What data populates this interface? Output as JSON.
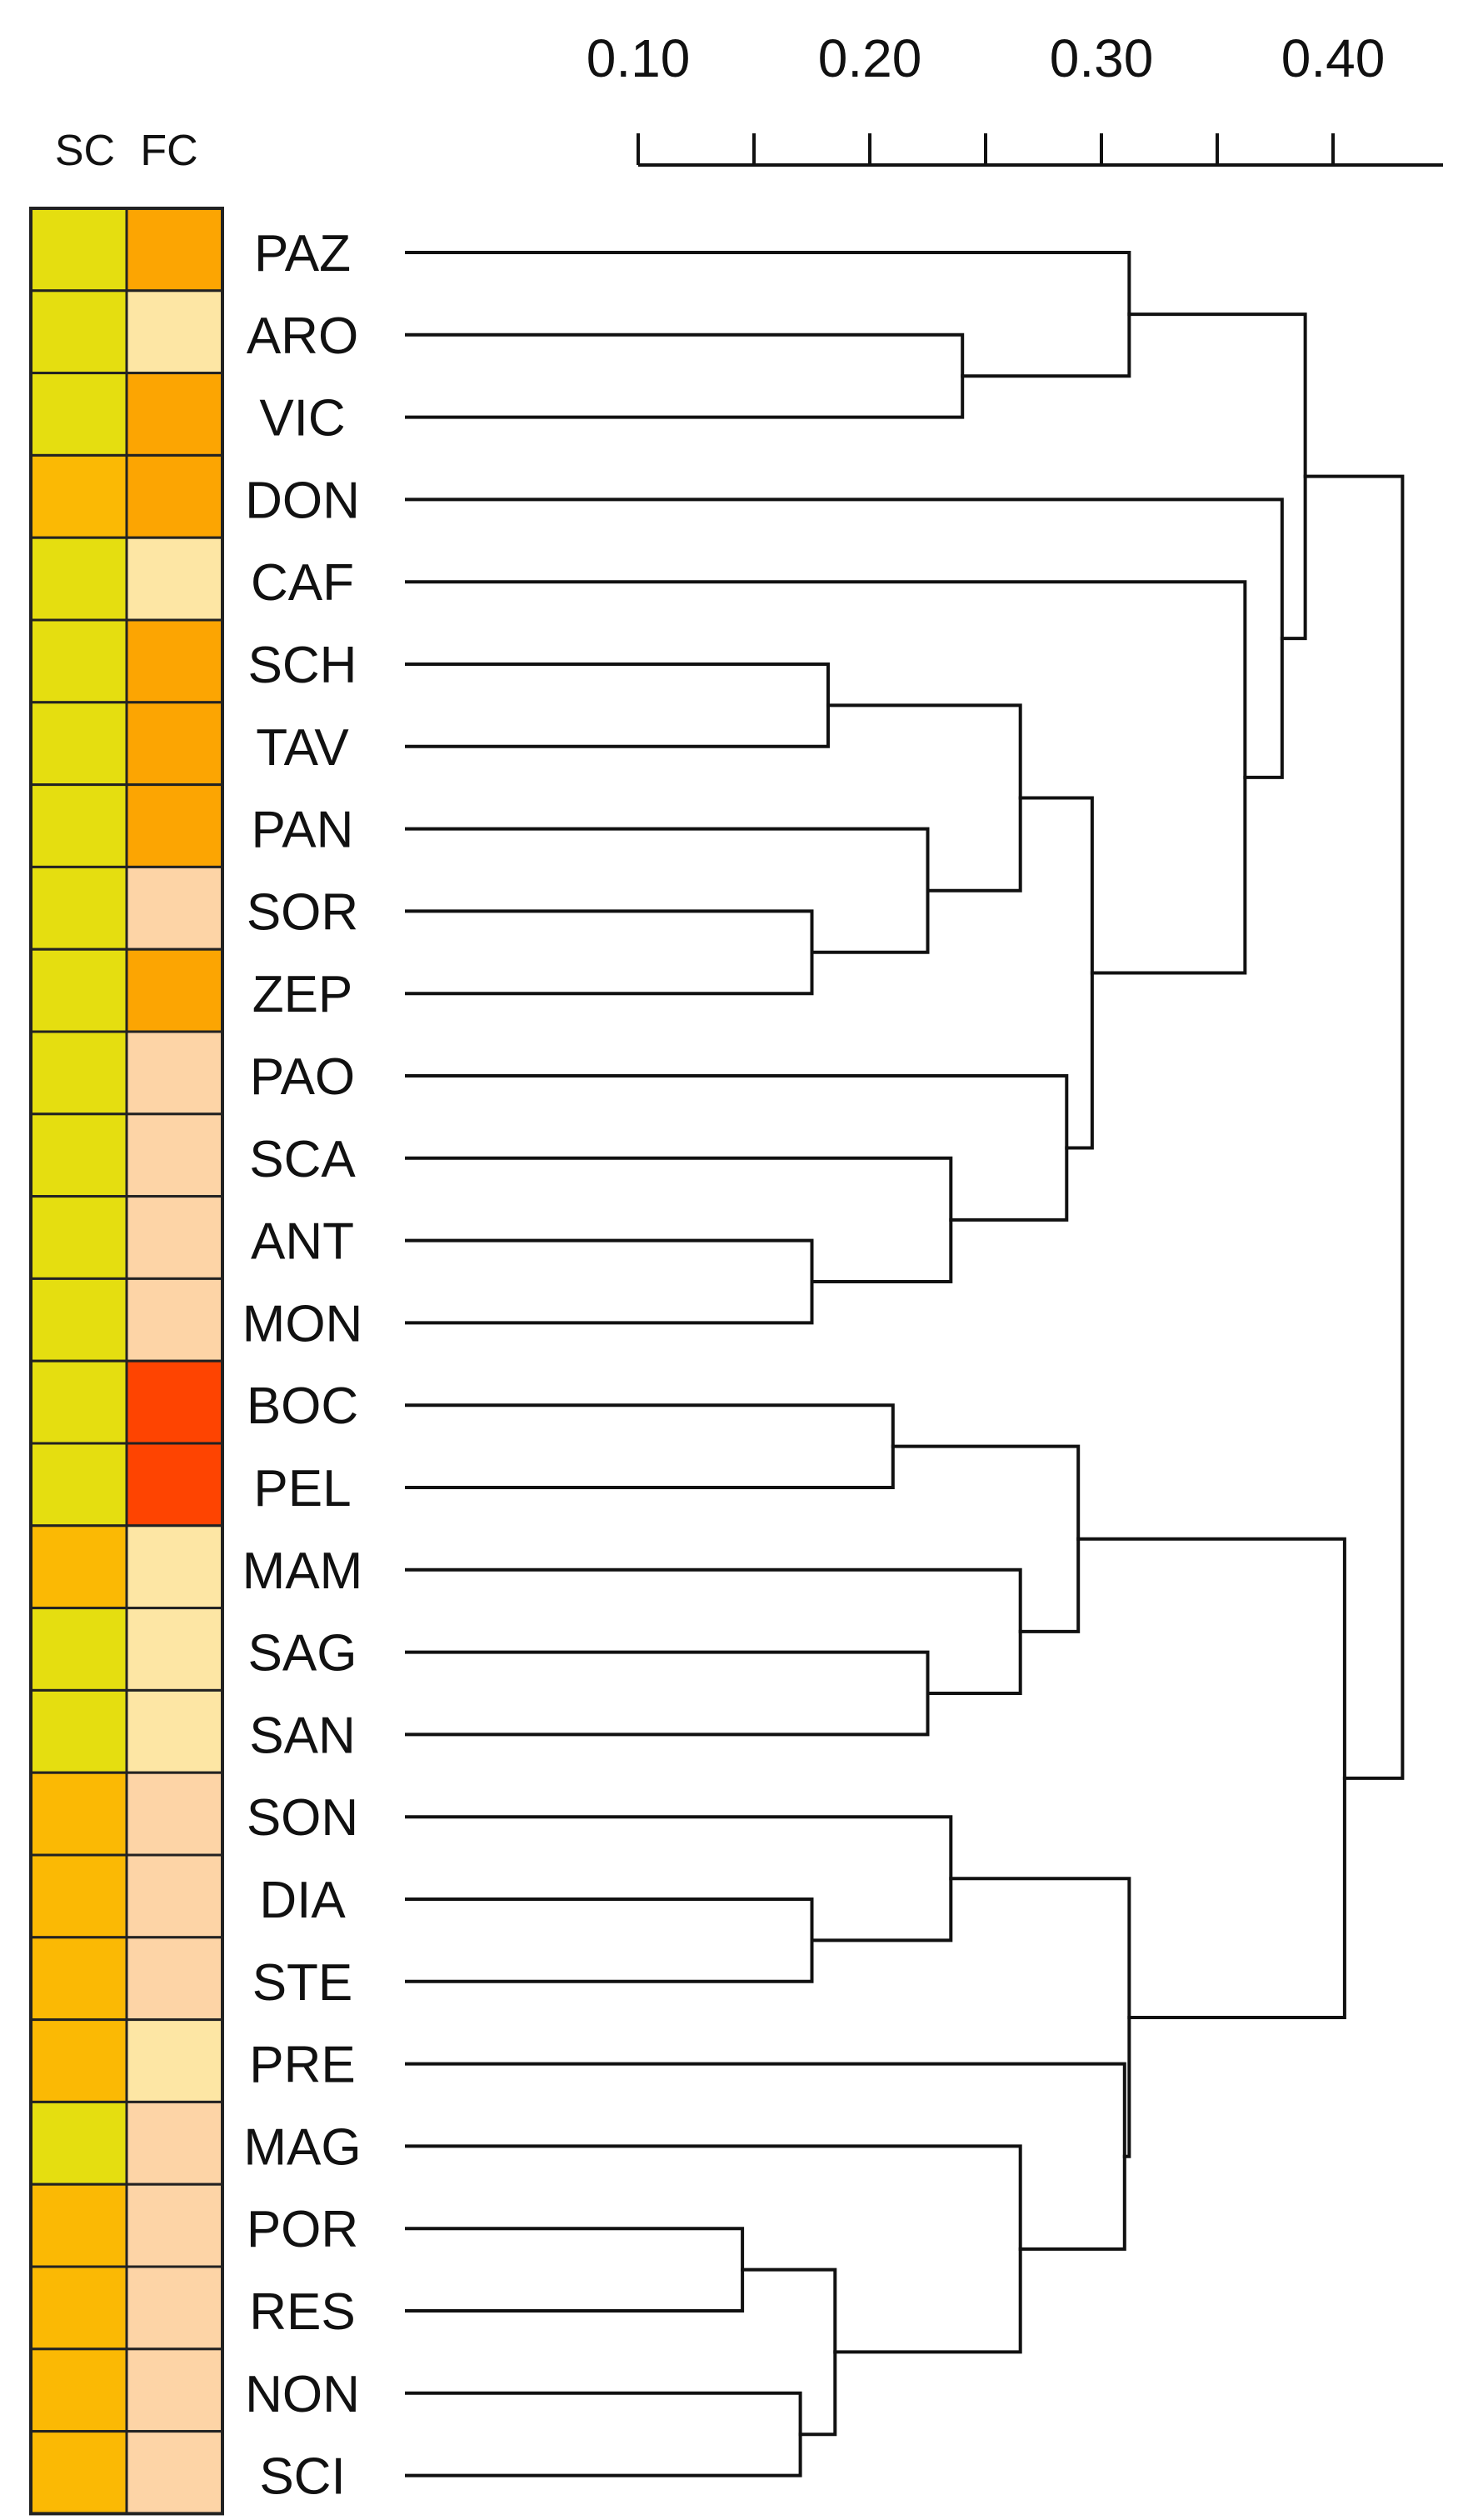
{
  "chart_data": {
    "type": "heatmap",
    "subtype": "dendrogram-with-annotation-heatmap",
    "title": "",
    "columns": [
      "SC",
      "FC"
    ],
    "axis": {
      "ticks": [
        0.1,
        0.2,
        0.3,
        0.4
      ],
      "tick_labels": [
        "0.10",
        "0.20",
        "0.30",
        "0.40"
      ],
      "minor_ticks": [
        0.15,
        0.25,
        0.35
      ],
      "range": [
        0.1,
        0.45
      ]
    },
    "leaves": [
      "PAZ",
      "ARO",
      "VIC",
      "DON",
      "CAF",
      "SCH",
      "TAV",
      "PAN",
      "SOR",
      "ZEP",
      "PAO",
      "SCA",
      "ANT",
      "MON",
      "BOC",
      "PEL",
      "MAM",
      "SAG",
      "SAN",
      "SON",
      "DIA",
      "STE",
      "PRE",
      "MAG",
      "POR",
      "RES",
      "NON",
      "SCI"
    ],
    "SC": [
      "yellow",
      "yellow",
      "yellow",
      "orange",
      "yellow",
      "yellow",
      "yellow",
      "yellow",
      "yellow",
      "yellow",
      "yellow",
      "yellow",
      "yellow",
      "yellow",
      "yellow",
      "yellow",
      "orange",
      "yellow",
      "yellow",
      "orange",
      "orange",
      "orange",
      "orange",
      "yellow",
      "orange",
      "orange",
      "orange",
      "orange"
    ],
    "FC": [
      "orange",
      "light_yellow",
      "orange",
      "orange",
      "light_yellow",
      "orange",
      "orange",
      "orange",
      "peach",
      "orange",
      "peach",
      "peach",
      "peach",
      "peach",
      "red",
      "red",
      "light_yellow",
      "light_yellow",
      "light_yellow",
      "peach",
      "peach",
      "peach",
      "light_yellow",
      "peach",
      "peach",
      "peach",
      "peach",
      "peach"
    ],
    "merges": [
      {
        "height": 0.145,
        "a": "POR",
        "b": "RES"
      },
      {
        "height": 0.17,
        "a": "NON",
        "b": "SCI"
      },
      {
        "height": 0.175,
        "a": "SOR",
        "b": "ZEP"
      },
      {
        "height": 0.175,
        "a": "ANT",
        "b": "MON"
      },
      {
        "height": 0.175,
        "a": "DIA",
        "b": "STE"
      },
      {
        "height": 0.182,
        "a": "SCH",
        "b": "TAV"
      },
      {
        "height": 0.185,
        "a": "POR-RES",
        "b": "NON-SCI"
      },
      {
        "height": 0.21,
        "a": "BOC",
        "b": "PEL"
      },
      {
        "height": 0.225,
        "a": "PAN",
        "b": "SOR-ZEP"
      },
      {
        "height": 0.225,
        "a": "SAG",
        "b": "SAN"
      },
      {
        "height": 0.235,
        "a": "SCA",
        "b": "ANT-MON"
      },
      {
        "height": 0.235,
        "a": "SON",
        "b": "DIA-STE"
      },
      {
        "height": 0.24,
        "a": "ARO",
        "b": "VIC"
      },
      {
        "height": 0.265,
        "a": "SCH-TAV",
        "b": "PAN-SOR-ZEP"
      },
      {
        "height": 0.265,
        "a": "MAM",
        "b": "SAG-SAN"
      },
      {
        "height": 0.265,
        "a": "MAG",
        "b": "POR-RES-NON-SCI"
      },
      {
        "height": 0.285,
        "a": "PAO",
        "b": "SCA-ANT-MON"
      },
      {
        "height": 0.29,
        "a": "BOC-PEL",
        "b": "MAM-SAG-SAN"
      },
      {
        "height": 0.296,
        "a": "SCH-ZEP",
        "b": "PAO-MON"
      },
      {
        "height": 0.31,
        "a": "PRE",
        "b": "MAG-SCI"
      },
      {
        "height": 0.312,
        "a": "PAZ",
        "b": "ARO-VIC"
      },
      {
        "height": 0.312,
        "a": "SON-STE",
        "b": "PRE-SCI"
      },
      {
        "height": 0.362,
        "a": "CAF",
        "b": "SCH-MON"
      },
      {
        "height": 0.378,
        "a": "DON",
        "b": "CAF-MON"
      },
      {
        "height": 0.388,
        "a": "PAZ-VIC",
        "b": "DON-MON"
      },
      {
        "height": 0.405,
        "a": "BOC-SAN",
        "b": "SON-SCI"
      },
      {
        "height": 0.43,
        "a": "PAZ-MON",
        "b": "BOC-SCI"
      }
    ]
  },
  "palette": {
    "yellow": "#e5de10",
    "orange": "#fbb904",
    "light_yellow": "#fde6a4",
    "peach": "#fdd4a6",
    "red": "#fe4401",
    "fc_orange": "#fca502"
  }
}
